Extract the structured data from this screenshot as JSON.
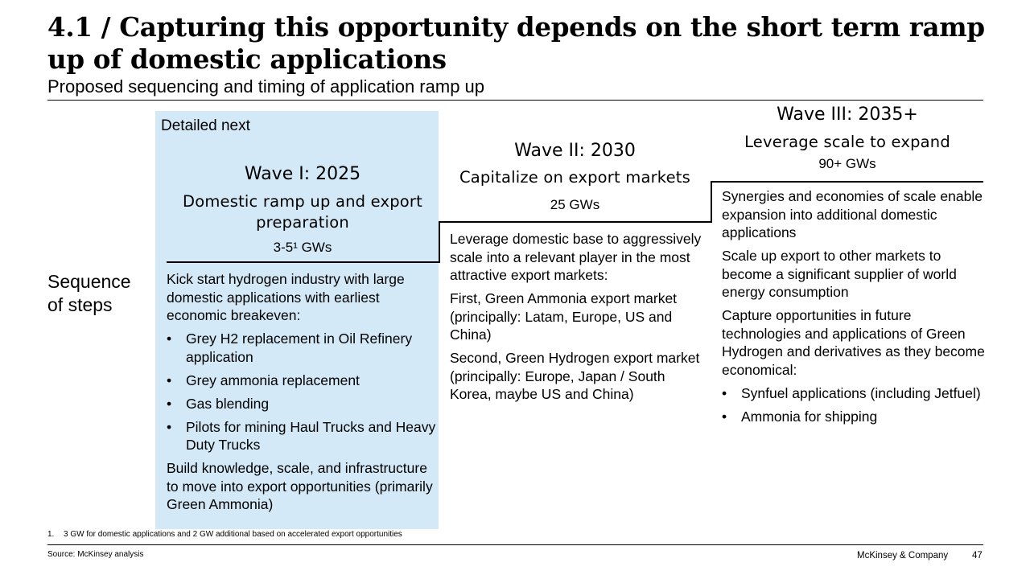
{
  "header": {
    "title": "4.1 / Capturing this opportunity depends on the short term ramp up of domestic applications",
    "subtitle": "Proposed sequencing and timing of application ramp up"
  },
  "side_label": {
    "line1": "Sequence",
    "line2": "of steps"
  },
  "detailed_next": "Detailed next",
  "waves": [
    {
      "title": "Wave I: 2025",
      "subtitle": "Domestic ramp up and export preparation",
      "capacity": "3-5¹ GWs",
      "paragraphs_before": [
        "Kick start hydrogen industry with large domestic applications with earliest economic breakeven:"
      ],
      "bullets": [
        "Grey H2 replacement in Oil Refinery application",
        "Grey ammonia replacement",
        "Gas blending",
        "Pilots for mining Haul Trucks and Heavy Duty Trucks"
      ],
      "paragraphs_after": [
        "Build knowledge, scale, and infrastructure to move into export opportunities (primarily Green Ammonia)"
      ]
    },
    {
      "title": "Wave II: 2030",
      "subtitle": "Capitalize on export markets",
      "capacity": "25 GWs",
      "paragraphs_before": [
        "Leverage domestic base to aggressively scale into a relevant player in the most attractive export markets:",
        "First, Green Ammonia export market (principally: Latam, Europe, US and China)",
        "Second, Green Hydrogen export market (principally: Europe, Japan / South Korea, maybe US and China)"
      ],
      "bullets": [],
      "paragraphs_after": []
    },
    {
      "title": "Wave III: 2035+",
      "subtitle": "Leverage scale to expand",
      "capacity": "90+ GWs",
      "paragraphs_before": [
        "Synergies and economies of scale enable expansion into additional domestic applications",
        "Scale up export to other markets to become a significant supplier of world energy consumption",
        "Capture opportunities in future technologies and applications of Green Hydrogen and derivatives as they become economical:"
      ],
      "bullets": [
        "Synfuel applications (including Jetfuel)",
        "Ammonia for shipping"
      ],
      "paragraphs_after": []
    }
  ],
  "bullet_char": "•",
  "footer": {
    "footnote_number": "1.",
    "footnote_text": "3 GW for domestic applications and 2 GW additional based on accelerated export opportunities",
    "source": "Source: McKinsey analysis",
    "company": "McKinsey & Company",
    "page_number": "47"
  },
  "colors": {
    "wave1_background": "#d4e9f7",
    "text": "#000000",
    "rules": "#000000"
  }
}
